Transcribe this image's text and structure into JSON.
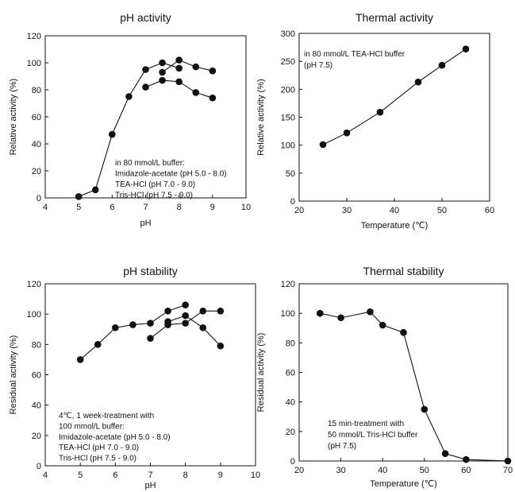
{
  "chart_data": [
    {
      "type": "line",
      "title": "pH activity",
      "xlabel": "pH",
      "ylabel": "Relative activity (%)",
      "xlim": [
        4,
        10
      ],
      "ylim": [
        0,
        120
      ],
      "xticks": [
        "4",
        "5",
        "6",
        "7",
        "8",
        "9",
        "10"
      ],
      "yticks": [
        "0",
        "20",
        "40",
        "60",
        "80",
        "100",
        "120"
      ],
      "annotation": [
        "in 80 mmol/L buffer:",
        "Imidazole-acetate (pH 5.0 - 8.0)",
        "TEA-HCl (pH 7.0 - 9.0)",
        "Tris-HCl (pH 7.5 - 9.0)"
      ],
      "series": [
        {
          "x": [
            5.0,
            5.5,
            6.0,
            6.5,
            7.0,
            7.5,
            8.0
          ],
          "y": [
            1,
            6,
            47,
            75,
            95,
            100,
            96
          ]
        },
        {
          "x": [
            7.0,
            7.5,
            8.0,
            8.5,
            9.0
          ],
          "y": [
            82,
            87,
            86,
            78,
            74
          ]
        },
        {
          "x": [
            7.5,
            8.0,
            8.5,
            9.0
          ],
          "y": [
            93,
            102,
            97,
            94
          ]
        }
      ],
      "grid": false
    },
    {
      "type": "line",
      "title": "Thermal activity",
      "xlabel": "Temperature (℃)",
      "ylabel": "Relative activity (%)",
      "xlim": [
        20,
        60
      ],
      "ylim": [
        0,
        300
      ],
      "xticks": [
        "20",
        "30",
        "40",
        "50",
        "60"
      ],
      "yticks": [
        "0",
        "50",
        "100",
        "150",
        "200",
        "250",
        "300"
      ],
      "annotation": [
        "in 80 mmol/L TEA-HCl buffer",
        "(pH 7.5)"
      ],
      "series": [
        {
          "x": [
            25,
            30,
            37,
            45,
            50,
            55
          ],
          "y": [
            101,
            122,
            159,
            213,
            243,
            272
          ]
        }
      ],
      "grid": false
    },
    {
      "type": "line",
      "title": "pH stability",
      "xlabel": "pH",
      "ylabel": "Residual activity (%)",
      "xlim": [
        4,
        10
      ],
      "ylim": [
        0,
        120
      ],
      "xticks": [
        "4",
        "5",
        "6",
        "7",
        "8",
        "9",
        "10"
      ],
      "yticks": [
        "0",
        "20",
        "40",
        "60",
        "80",
        "100",
        "120"
      ],
      "annotation": [
        "4℃, 1 week-treatment with",
        "100 mmol/L buffer:",
        "Imidazole-acetate (pH 5.0 - 8.0)",
        "TEA-HCl (pH 7.0 - 9.0)",
        "Tris-HCl (pH 7.5 - 9.0)"
      ],
      "series": [
        {
          "x": [
            5.0,
            5.5,
            6.0,
            6.5,
            7.0,
            7.5,
            8.0
          ],
          "y": [
            70,
            80,
            91,
            93,
            94,
            102,
            106
          ]
        },
        {
          "x": [
            7.0,
            7.5,
            8.0,
            8.5,
            9.0
          ],
          "y": [
            84,
            93,
            94,
            102,
            102
          ]
        },
        {
          "x": [
            7.5,
            8.0,
            8.5,
            9.0
          ],
          "y": [
            95,
            99,
            91,
            79
          ]
        }
      ],
      "grid": false
    },
    {
      "type": "line",
      "title": "Thermal stability",
      "xlabel": "Temperature (℃)",
      "ylabel": "Residual activity (%)",
      "xlim": [
        20,
        70
      ],
      "ylim": [
        0,
        120
      ],
      "xticks": [
        "20",
        "30",
        "40",
        "50",
        "60",
        "70"
      ],
      "yticks": [
        "0",
        "20",
        "40",
        "60",
        "80",
        "100",
        "120"
      ],
      "annotation": [
        "15 min-treatment with",
        "50 mmol/L Tris-HCl buffer",
        "(pH 7.5)"
      ],
      "series": [
        {
          "x": [
            25,
            30,
            37,
            40,
            45,
            50,
            55,
            60,
            70
          ],
          "y": [
            100,
            97,
            101,
            92,
            87,
            35,
            5,
            1,
            0
          ]
        }
      ],
      "grid": false
    }
  ]
}
